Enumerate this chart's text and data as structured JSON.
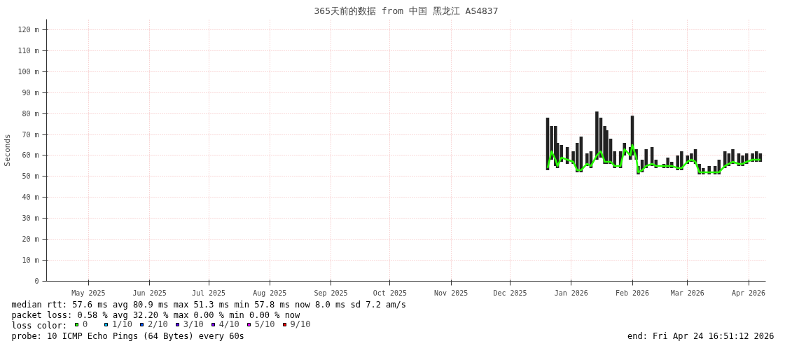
{
  "chart_data": {
    "type": "line",
    "title": "365天前的数据 from 中国 黑龙江 AS4837",
    "ylabel": "Seconds",
    "legend_title": "loss color:",
    "legend": "bottom",
    "grid": true,
    "xlim": [
      "2025-04-24T16:51",
      "2026-04-24T16:51"
    ],
    "xticks": [
      {
        "value": "2025-05-16",
        "label": "May 2025"
      },
      {
        "value": "2025-06-16",
        "label": "Jun 2025"
      },
      {
        "value": "2025-07-16",
        "label": "Jul 2025"
      },
      {
        "value": "2025-08-16",
        "label": "Aug 2025"
      },
      {
        "value": "2025-09-16",
        "label": "Sep 2025"
      },
      {
        "value": "2025-10-16",
        "label": "Oct 2025"
      },
      {
        "value": "2025-11-16",
        "label": "Nov 2025"
      },
      {
        "value": "2025-12-16",
        "label": "Dec 2025"
      },
      {
        "value": "2026-01-16",
        "label": "Jan 2026"
      },
      {
        "value": "2026-02-16",
        "label": "Feb 2026"
      },
      {
        "value": "2026-03-16",
        "label": "Mar 2026"
      },
      {
        "value": "2026-04-16",
        "label": "Apr 2026"
      }
    ],
    "ylim": [
      0,
      125
    ],
    "yticks": [
      0,
      {
        "value": 10,
        "label": "10 m"
      },
      {
        "value": 20,
        "label": "20 m"
      },
      {
        "value": 30,
        "label": "30 m"
      },
      {
        "value": 40,
        "label": "40 m"
      },
      {
        "value": 50,
        "label": "50 m"
      },
      {
        "value": 60,
        "label": "60 m"
      },
      {
        "value": 70,
        "label": "70 m"
      },
      {
        "value": 80,
        "label": "80 m"
      },
      {
        "value": 90,
        "label": "90 m"
      },
      {
        "value": 100,
        "label": "100 m"
      },
      {
        "value": 110,
        "label": "110 m"
      },
      {
        "value": 120,
        "label": "120 m"
      }
    ],
    "x": [
      "2026-01-04",
      "2026-01-06",
      "2026-01-08",
      "2026-01-09",
      "2026-01-11",
      "2026-01-14",
      "2026-01-17",
      "2026-01-19",
      "2026-01-21",
      "2026-01-24",
      "2026-01-26",
      "2026-01-29",
      "2026-01-31",
      "2026-02-02",
      "2026-02-03",
      "2026-02-05",
      "2026-02-07",
      "2026-02-10",
      "2026-02-12",
      "2026-02-15",
      "2026-02-16",
      "2026-02-18",
      "2026-02-19",
      "2026-02-21",
      "2026-02-23",
      "2026-02-26",
      "2026-02-28",
      "2026-03-04",
      "2026-03-06",
      "2026-03-08",
      "2026-03-11",
      "2026-03-13",
      "2026-03-16",
      "2026-03-18",
      "2026-03-20",
      "2026-03-22",
      "2026-03-24",
      "2026-03-27",
      "2026-03-30",
      "2026-04-01",
      "2026-04-04",
      "2026-04-06",
      "2026-04-08",
      "2026-04-11",
      "2026-04-13",
      "2026-04-15",
      "2026-04-18",
      "2026-04-20",
      "2026-04-22"
    ],
    "series": [
      {
        "name": "0",
        "color": "#26ff00",
        "values": [
          54,
          62,
          58,
          55,
          59,
          58,
          57,
          53,
          53,
          56,
          55,
          60,
          62,
          57,
          57,
          57,
          55,
          55,
          63,
          60,
          65,
          59,
          52,
          53,
          55,
          56,
          55,
          55,
          55,
          55,
          54,
          54,
          57,
          58,
          57,
          52,
          52,
          52,
          52,
          52,
          55,
          56,
          57,
          56,
          56,
          57,
          58,
          58,
          58
        ],
        "lower": [
          53,
          58,
          55,
          54,
          57,
          56,
          56,
          52,
          52,
          55,
          54,
          58,
          59,
          56,
          56,
          56,
          54,
          54,
          60,
          58,
          60,
          58,
          51,
          52,
          54,
          55,
          54,
          54,
          54,
          54,
          53,
          53,
          56,
          57,
          56,
          51,
          51,
          51,
          51,
          51,
          54,
          55,
          56,
          55,
          55,
          56,
          57,
          57,
          57
        ],
        "upper": [
          78,
          74,
          74,
          66,
          65,
          64,
          62,
          66,
          69,
          61,
          62,
          81,
          78,
          74,
          72,
          68,
          62,
          62,
          66,
          64,
          79,
          63,
          55,
          58,
          63,
          64,
          58,
          56,
          59,
          57,
          60,
          62,
          60,
          61,
          63,
          56,
          54,
          55,
          55,
          58,
          62,
          61,
          63,
          61,
          60,
          61,
          61,
          62,
          61
        ]
      },
      {
        "name": "1/10",
        "color": "#00b8ff",
        "values": [
          null,
          null,
          null,
          null,
          null,
          null,
          null,
          null,
          null,
          null,
          null,
          null,
          null,
          null,
          null,
          null,
          null,
          null,
          null,
          null,
          null,
          null,
          null,
          null,
          null,
          null,
          null,
          null,
          null,
          null,
          null,
          null,
          null,
          null,
          null,
          null,
          null,
          null,
          null,
          null,
          null,
          null,
          null,
          null,
          null,
          null,
          null,
          null,
          null
        ]
      },
      {
        "name": "2/10",
        "color": "#0059ff",
        "values": [
          null,
          null,
          null,
          null,
          null,
          null,
          null,
          null,
          null,
          null,
          null,
          null,
          null,
          null,
          null,
          null,
          null,
          null,
          null,
          null,
          null,
          null,
          null,
          null,
          null,
          null,
          null,
          null,
          null,
          null,
          null,
          null,
          null,
          null,
          null,
          null,
          null,
          null,
          null,
          null,
          null,
          null,
          null,
          null,
          null,
          null,
          null,
          null,
          null
        ]
      },
      {
        "name": "3/10",
        "color": "#5e00ff",
        "values": [
          null,
          null,
          null,
          null,
          null,
          null,
          null,
          null,
          null,
          null,
          null,
          null,
          null,
          null,
          null,
          null,
          null,
          null,
          null,
          null,
          null,
          null,
          null,
          null,
          null,
          null,
          null,
          null,
          null,
          null,
          null,
          null,
          null,
          null,
          null,
          null,
          null,
          null,
          null,
          null,
          null,
          null,
          null,
          null,
          null,
          null,
          null,
          null,
          null
        ]
      },
      {
        "name": "4/10",
        "color": "#7e00ff",
        "values": [
          null,
          null,
          null,
          null,
          null,
          null,
          null,
          null,
          null,
          null,
          null,
          null,
          null,
          null,
          null,
          null,
          null,
          null,
          null,
          null,
          null,
          null,
          null,
          null,
          null,
          null,
          null,
          null,
          null,
          null,
          null,
          null,
          null,
          null,
          null,
          null,
          null,
          null,
          null,
          null,
          null,
          null,
          null,
          null,
          null,
          null,
          null,
          null,
          null
        ]
      },
      {
        "name": "5/10",
        "color": "#dd00ff",
        "values": [
          null,
          null,
          null,
          null,
          null,
          null,
          null,
          null,
          null,
          null,
          null,
          null,
          null,
          null,
          null,
          null,
          null,
          null,
          null,
          null,
          null,
          null,
          null,
          null,
          null,
          null,
          null,
          null,
          null,
          null,
          null,
          null,
          null,
          null,
          null,
          null,
          null,
          null,
          null,
          null,
          null,
          null,
          null,
          null,
          null,
          null,
          null,
          null,
          null
        ]
      },
      {
        "name": "9/10",
        "color": "#ff0000",
        "values": [
          null,
          null,
          null,
          null,
          null,
          null,
          null,
          null,
          null,
          null,
          null,
          null,
          null,
          null,
          null,
          null,
          null,
          null,
          null,
          null,
          null,
          null,
          null,
          null,
          null,
          null,
          null,
          null,
          null,
          null,
          null,
          null,
          null,
          null,
          null,
          null,
          null,
          null,
          null,
          null,
          null,
          null,
          null,
          null,
          null,
          null,
          null,
          null,
          null
        ]
      }
    ],
    "annotations": [
      "median rtt:  57.6 ms avg  80.9 ms max  51.3 ms min  57.8 ms now  8.0 ms sd  7.2   am/s",
      "packet loss: 0.58 % avg  32.20 % max  0.00 % min  0.00 % now",
      "probe:       10 ICMP Echo Pings (64 Bytes) every 60s",
      "end: Fri Apr 24 16:51:12 2026"
    ]
  }
}
